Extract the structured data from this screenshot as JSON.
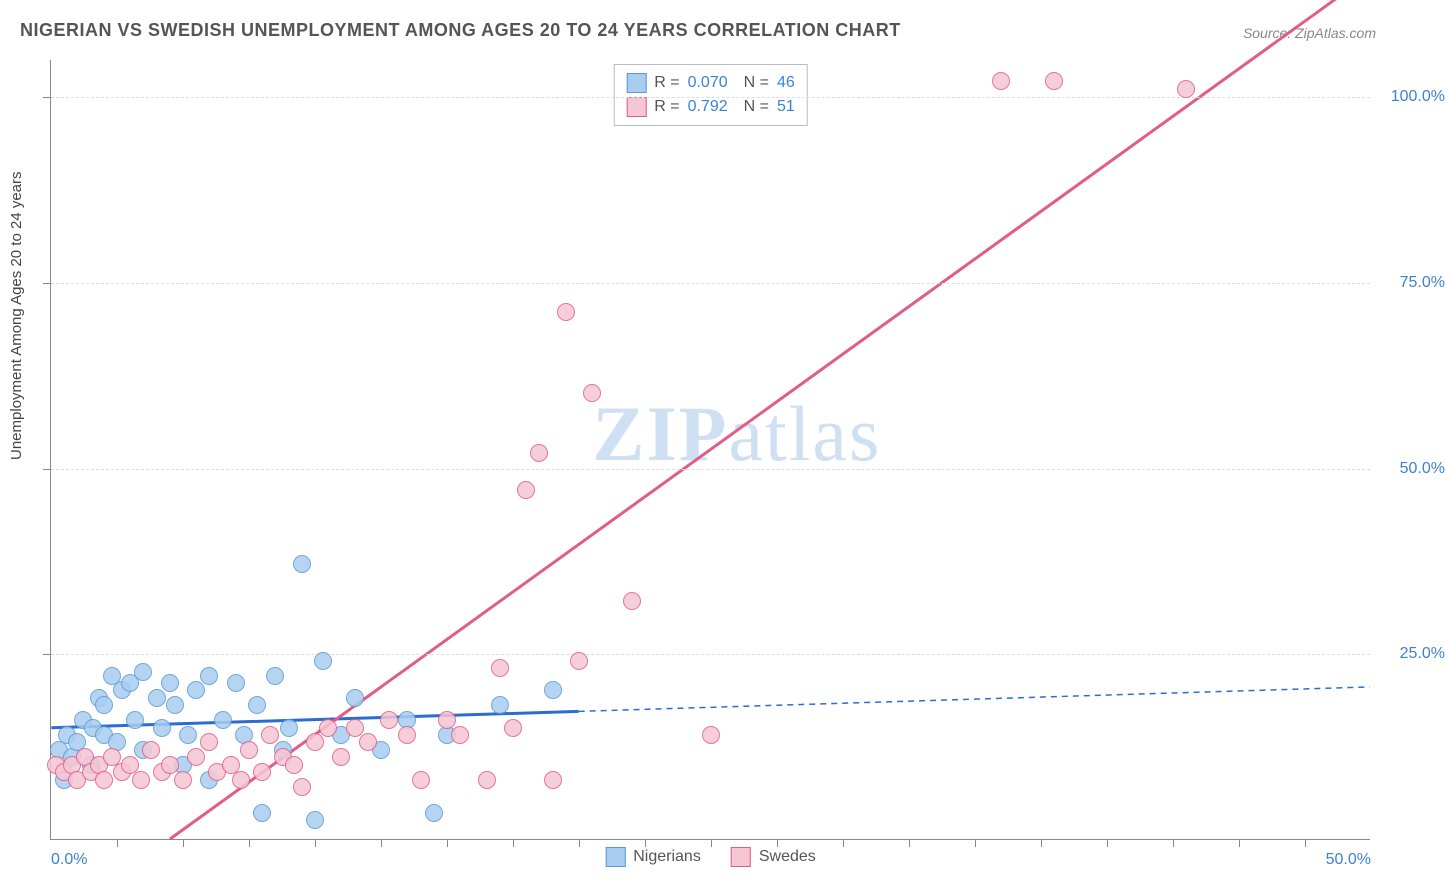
{
  "title": "NIGERIAN VS SWEDISH UNEMPLOYMENT AMONG AGES 20 TO 24 YEARS CORRELATION CHART",
  "source": "Source: ZipAtlas.com",
  "y_axis_label": "Unemployment Among Ages 20 to 24 years",
  "watermark": {
    "part1": "ZIP",
    "part2": "atlas"
  },
  "chart": {
    "type": "scatter",
    "xlim": [
      0,
      50
    ],
    "ylim": [
      0,
      105
    ],
    "y_ticks": [
      25,
      50,
      75,
      100
    ],
    "y_tick_labels": [
      "25.0%",
      "50.0%",
      "75.0%",
      "100.0%"
    ],
    "x_minor_ticks": [
      2.5,
      5,
      7.5,
      10,
      12.5,
      15,
      17.5,
      20,
      22.5,
      25,
      27.5,
      30,
      32.5,
      35,
      37.5,
      40,
      42.5,
      45,
      47.5
    ],
    "x_tick_labels": {
      "start": "0.0%",
      "end": "50.0%"
    },
    "background_color": "#ffffff",
    "grid_color": "#dddddd",
    "axis_color": "#888888",
    "marker_radius": 9,
    "series": [
      {
        "name": "Nigerians",
        "color_fill": "#a8cdf0",
        "color_border": "#5b99d6",
        "r_value": "0.070",
        "n_value": "46",
        "trend": {
          "color": "#2b6cd1",
          "width": 3,
          "solid_to_x": 20,
          "x1": 0,
          "y1": 15.0,
          "x2": 50,
          "y2": 20.5
        },
        "points": [
          [
            0.3,
            12
          ],
          [
            0.5,
            8
          ],
          [
            0.6,
            14
          ],
          [
            0.8,
            11
          ],
          [
            1.0,
            13
          ],
          [
            1.2,
            16
          ],
          [
            1.5,
            10
          ],
          [
            1.6,
            15
          ],
          [
            1.8,
            19
          ],
          [
            2.0,
            18
          ],
          [
            2.0,
            14
          ],
          [
            2.3,
            22
          ],
          [
            2.5,
            13
          ],
          [
            2.7,
            20
          ],
          [
            3.0,
            21
          ],
          [
            3.2,
            16
          ],
          [
            3.5,
            22.5
          ],
          [
            3.5,
            12
          ],
          [
            4.0,
            19
          ],
          [
            4.2,
            15
          ],
          [
            4.5,
            21
          ],
          [
            4.7,
            18
          ],
          [
            5.0,
            10
          ],
          [
            5.2,
            14
          ],
          [
            5.5,
            20
          ],
          [
            6.0,
            22
          ],
          [
            6.0,
            8
          ],
          [
            6.5,
            16
          ],
          [
            7.0,
            21
          ],
          [
            7.3,
            14
          ],
          [
            7.8,
            18
          ],
          [
            8.0,
            3.5
          ],
          [
            8.5,
            22
          ],
          [
            8.8,
            12
          ],
          [
            9.0,
            15
          ],
          [
            9.5,
            37
          ],
          [
            10.0,
            2.5
          ],
          [
            10.3,
            24
          ],
          [
            11.0,
            14
          ],
          [
            11.5,
            19
          ],
          [
            12.5,
            12
          ],
          [
            13.5,
            16
          ],
          [
            14.5,
            3.5
          ],
          [
            15.0,
            14
          ],
          [
            17.0,
            18
          ],
          [
            19.0,
            20
          ]
        ]
      },
      {
        "name": "Swedes",
        "color_fill": "#f5c6d3",
        "color_border": "#e05d8a",
        "r_value": "0.792",
        "n_value": "51",
        "trend": {
          "color": "#e05d8a",
          "width": 3,
          "solid_to_x": 50,
          "x1": 4.5,
          "y1": 0,
          "x2": 45.5,
          "y2": 105
        },
        "points": [
          [
            0.2,
            10
          ],
          [
            0.5,
            9
          ],
          [
            0.8,
            10
          ],
          [
            1.0,
            8
          ],
          [
            1.3,
            11
          ],
          [
            1.5,
            9
          ],
          [
            1.8,
            10
          ],
          [
            2.0,
            8
          ],
          [
            2.3,
            11
          ],
          [
            2.7,
            9
          ],
          [
            3.0,
            10
          ],
          [
            3.4,
            8
          ],
          [
            3.8,
            12
          ],
          [
            4.2,
            9
          ],
          [
            4.5,
            10
          ],
          [
            5.0,
            8
          ],
          [
            5.5,
            11
          ],
          [
            6.0,
            13
          ],
          [
            6.3,
            9
          ],
          [
            6.8,
            10
          ],
          [
            7.2,
            8
          ],
          [
            7.5,
            12
          ],
          [
            8.0,
            9
          ],
          [
            8.3,
            14
          ],
          [
            8.8,
            11
          ],
          [
            9.2,
            10
          ],
          [
            9.5,
            7
          ],
          [
            10.0,
            13
          ],
          [
            10.5,
            15
          ],
          [
            11.0,
            11
          ],
          [
            11.5,
            15
          ],
          [
            12.0,
            13
          ],
          [
            12.8,
            16
          ],
          [
            13.5,
            14
          ],
          [
            14.0,
            8
          ],
          [
            15.0,
            16
          ],
          [
            15.5,
            14
          ],
          [
            16.5,
            8
          ],
          [
            17.0,
            23
          ],
          [
            17.5,
            15
          ],
          [
            18.0,
            47
          ],
          [
            18.5,
            52
          ],
          [
            19.0,
            8
          ],
          [
            19.5,
            71
          ],
          [
            20.0,
            24
          ],
          [
            20.5,
            60
          ],
          [
            22.0,
            32
          ],
          [
            25.0,
            14
          ],
          [
            36.0,
            102
          ],
          [
            38.0,
            102
          ],
          [
            43.0,
            101
          ]
        ]
      }
    ]
  },
  "bottom_legend": [
    {
      "label": "Nigerians",
      "fill": "#a8cdf0",
      "border": "#5b99d6"
    },
    {
      "label": "Swedes",
      "fill": "#f5c6d3",
      "border": "#e05d8a"
    }
  ]
}
